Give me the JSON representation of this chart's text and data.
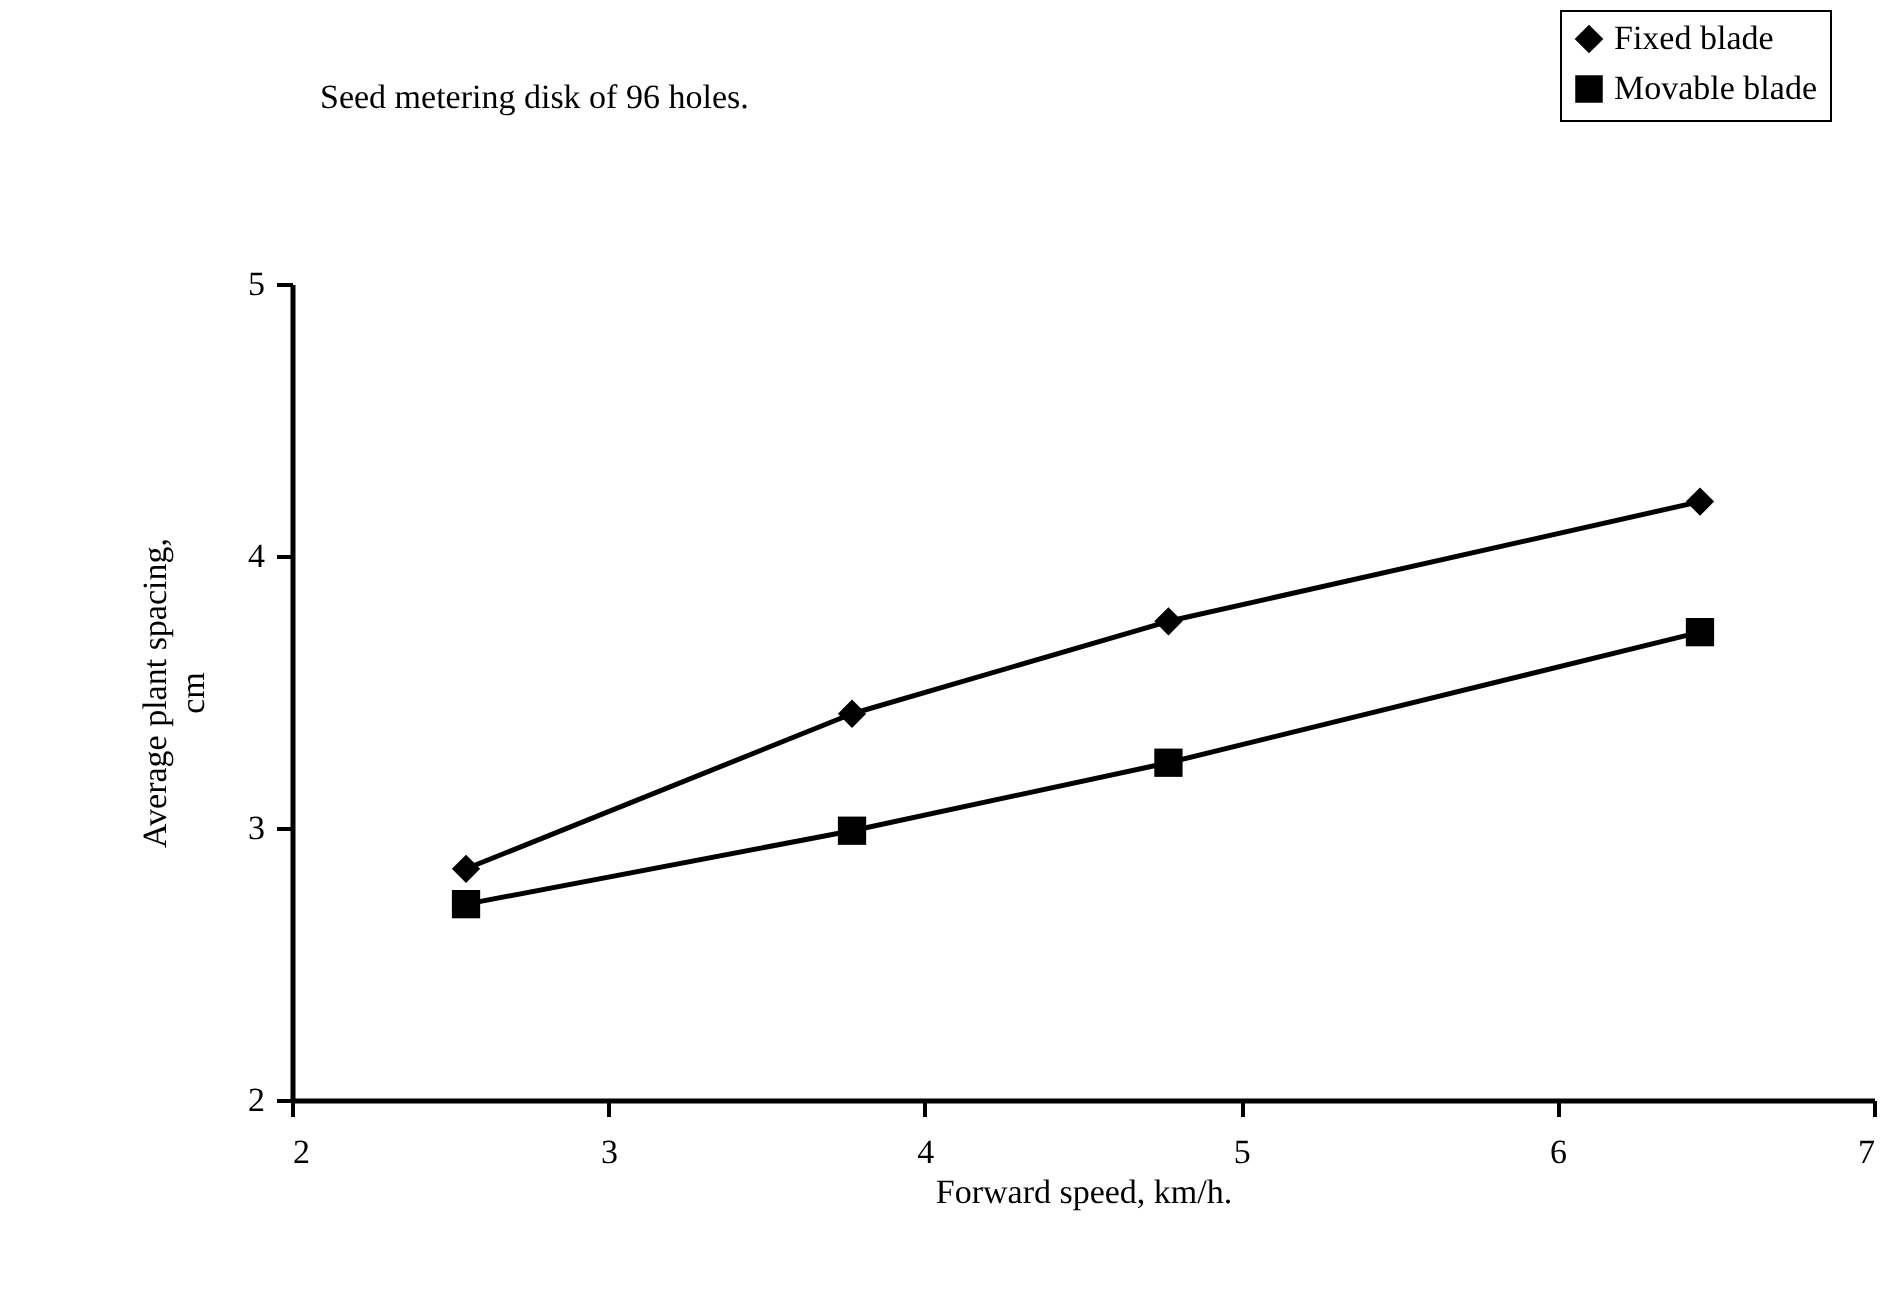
{
  "chart_data": {
    "type": "line",
    "title": "Seed metering disk of 96 holes.",
    "xlabel": "Forward speed, km/h.",
    "ylabel": "Average plant spacing, cm",
    "x": [
      2.55,
      3.77,
      4.77,
      6.45
    ],
    "series": [
      {
        "name": "Fixed blade",
        "color": "#000000",
        "marker": "diamond",
        "values": [
          2.85,
          3.42,
          3.76,
          4.2
        ]
      },
      {
        "name": "Movable blade",
        "color": "#000000",
        "marker": "square",
        "values": [
          2.72,
          2.99,
          3.24,
          3.72
        ]
      }
    ],
    "xlim": [
      2,
      7
    ],
    "xticks": [
      2,
      3,
      4,
      5,
      6,
      7
    ],
    "ylim": [
      2,
      5
    ],
    "yticks": [
      2,
      3,
      4,
      5
    ],
    "grid": false,
    "legend": "top right",
    "line_style": "solid"
  }
}
